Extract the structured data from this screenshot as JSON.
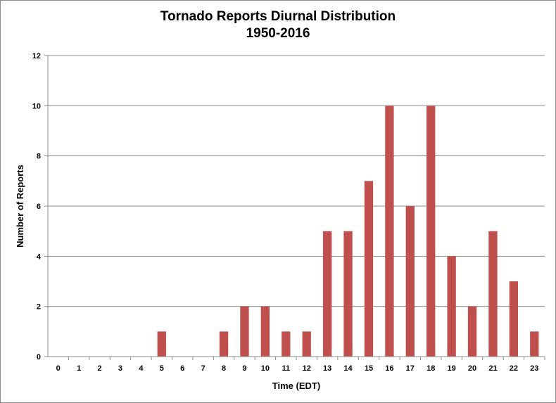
{
  "chart_data": {
    "type": "bar",
    "title": "Tornado Reports Diurnal Distribution",
    "subtitle": "1950-2016",
    "xlabel": "Time (EDT)",
    "ylabel": "Number of Reports",
    "categories": [
      "0",
      "1",
      "2",
      "3",
      "4",
      "5",
      "6",
      "7",
      "8",
      "9",
      "10",
      "11",
      "12",
      "13",
      "14",
      "15",
      "16",
      "17",
      "18",
      "19",
      "20",
      "21",
      "22",
      "23"
    ],
    "values": [
      0,
      0,
      0,
      0,
      0,
      1,
      0,
      0,
      1,
      2,
      2,
      1,
      1,
      5,
      5,
      7,
      10,
      6,
      10,
      4,
      2,
      5,
      3,
      1
    ],
    "ylim": [
      0,
      12
    ],
    "yticks": [
      "0",
      "2",
      "4",
      "6",
      "8",
      "10",
      "12"
    ],
    "grid": true,
    "legend": "none",
    "bar_color": "#C0504D"
  }
}
